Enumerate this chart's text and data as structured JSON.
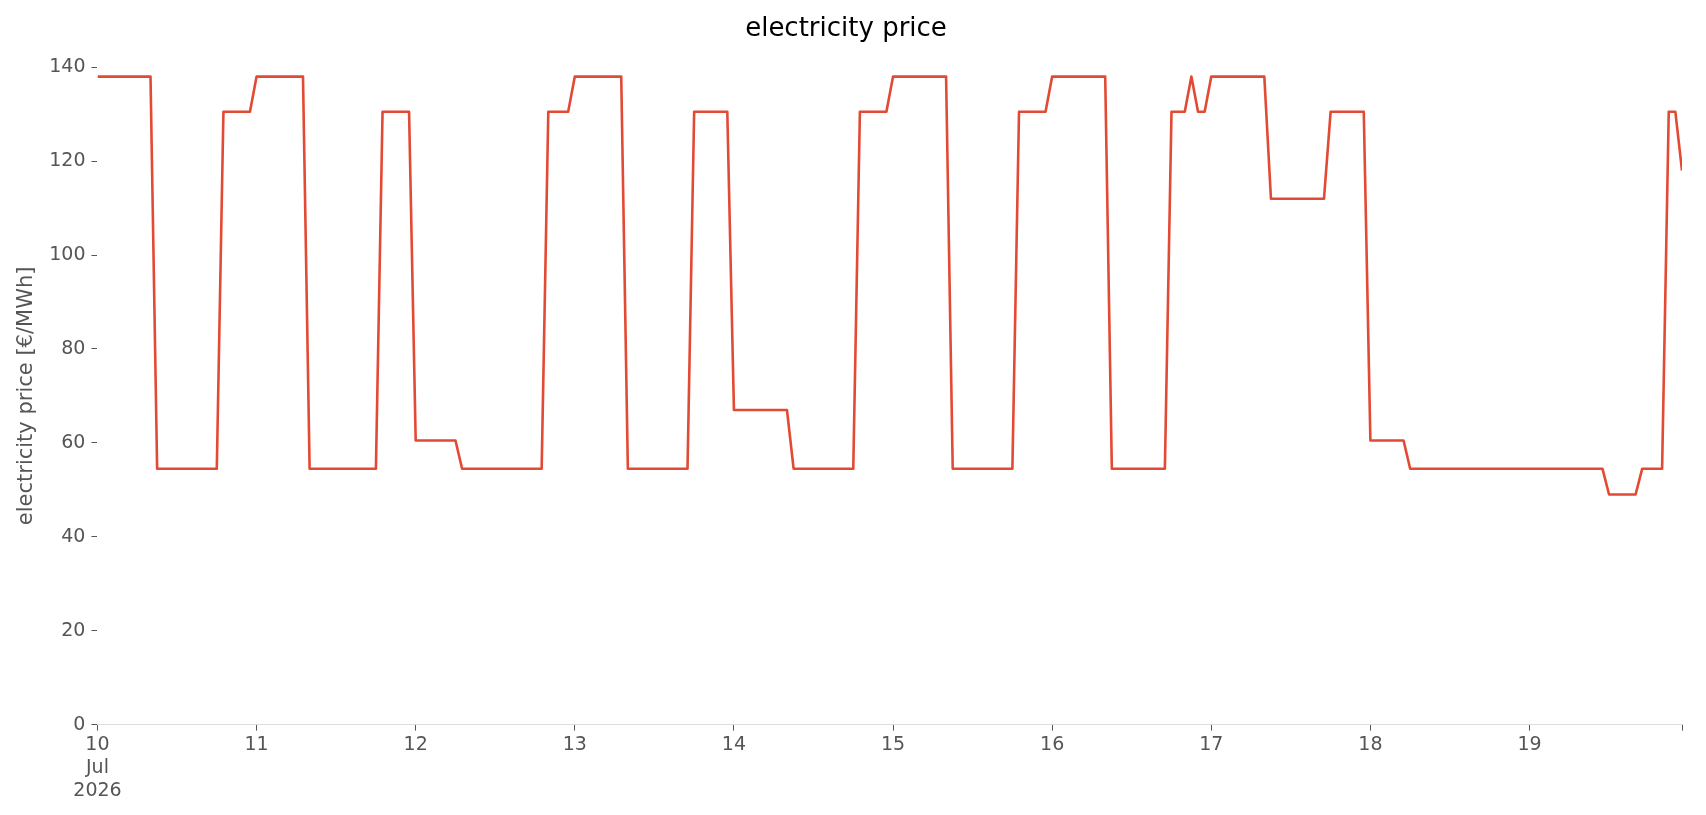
{
  "chart_data": {
    "type": "line",
    "title": "electricity price",
    "ylabel": "electricity price [€/MWh]",
    "x": [
      "2026-07-10T00:00",
      "2026-07-10T08:00",
      "2026-07-10T09:00",
      "2026-07-10T18:00",
      "2026-07-10T19:00",
      "2026-07-10T23:00",
      "2026-07-11T00:00",
      "2026-07-11T07:00",
      "2026-07-11T08:00",
      "2026-07-11T18:00",
      "2026-07-11T19:00",
      "2026-07-11T23:00",
      "2026-07-12T00:00",
      "2026-07-12T06:00",
      "2026-07-12T07:00",
      "2026-07-12T19:00",
      "2026-07-12T20:00",
      "2026-07-12T23:00",
      "2026-07-13T00:00",
      "2026-07-13T07:00",
      "2026-07-13T08:00",
      "2026-07-13T17:00",
      "2026-07-13T18:00",
      "2026-07-13T23:00",
      "2026-07-14T00:00",
      "2026-07-14T08:00",
      "2026-07-14T09:00",
      "2026-07-14T18:00",
      "2026-07-14T19:00",
      "2026-07-14T23:00",
      "2026-07-15T00:00",
      "2026-07-15T08:00",
      "2026-07-15T09:00",
      "2026-07-15T18:00",
      "2026-07-15T19:00",
      "2026-07-15T23:00",
      "2026-07-16T00:00",
      "2026-07-16T08:00",
      "2026-07-16T09:00",
      "2026-07-16T17:00",
      "2026-07-16T18:00",
      "2026-07-16T20:00",
      "2026-07-16T21:00",
      "2026-07-16T22:00",
      "2026-07-16T23:00",
      "2026-07-17T00:00",
      "2026-07-17T08:00",
      "2026-07-17T09:00",
      "2026-07-17T17:00",
      "2026-07-17T18:00",
      "2026-07-17T23:00",
      "2026-07-18T00:00",
      "2026-07-18T05:00",
      "2026-07-18T06:00",
      "2026-07-19T11:00",
      "2026-07-19T12:00",
      "2026-07-19T16:00",
      "2026-07-19T17:00",
      "2026-07-19T20:00",
      "2026-07-19T21:00",
      "2026-07-19T22:00",
      "2026-07-19T23:00"
    ],
    "series": [
      {
        "color": "#e24a33",
        "values": [
          138,
          138,
          54.5,
          54.5,
          130.5,
          130.5,
          138,
          138,
          54.5,
          54.5,
          130.5,
          130.5,
          60.5,
          60.5,
          54.5,
          54.5,
          130.5,
          130.5,
          138,
          138,
          54.5,
          54.5,
          130.5,
          130.5,
          67,
          67,
          54.5,
          54.5,
          130.5,
          130.5,
          138,
          138,
          54.5,
          54.5,
          130.5,
          130.5,
          138,
          138,
          54.5,
          54.5,
          130.5,
          130.5,
          138,
          130.5,
          130.5,
          138,
          138,
          112,
          112,
          130.5,
          130.5,
          60.5,
          60.5,
          54.5,
          54.5,
          49,
          49,
          54.5,
          54.5,
          130.5,
          130.5,
          118
        ]
      }
    ],
    "xlim": [
      "2026-07-10T00:00",
      "2026-07-19T23:00"
    ],
    "xticks": [
      {
        "value": "2026-07-10",
        "label": "10\nJul\n2026"
      },
      {
        "value": "2026-07-11",
        "label": "11"
      },
      {
        "value": "2026-07-12",
        "label": "12"
      },
      {
        "value": "2026-07-13",
        "label": "13"
      },
      {
        "value": "2026-07-14",
        "label": "14"
      },
      {
        "value": "2026-07-15",
        "label": "15"
      },
      {
        "value": "2026-07-16",
        "label": "16"
      },
      {
        "value": "2026-07-17",
        "label": "17"
      },
      {
        "value": "2026-07-18",
        "label": "18"
      },
      {
        "value": "2026-07-19",
        "label": "19"
      },
      {
        "value": "2026-07-19T23:00",
        "label": null
      }
    ],
    "ylim": [
      0,
      140
    ],
    "yticks": [
      0,
      20,
      40,
      60,
      80,
      100,
      120,
      140
    ],
    "grid": false,
    "legend": false,
    "marker": "none",
    "line_style": "solid"
  }
}
